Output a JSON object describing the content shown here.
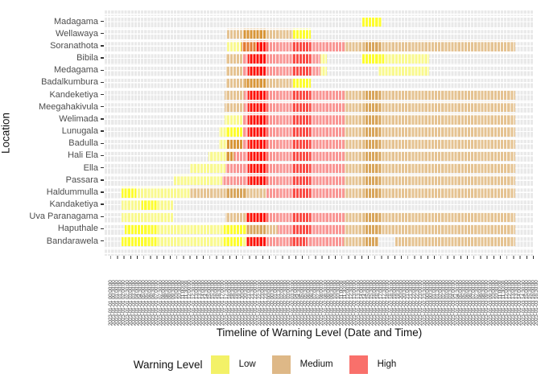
{
  "figure": {
    "x_axis_title": "Timeline of Warning Level (Date and Time)",
    "y_axis_title": "Location"
  },
  "legend": {
    "title": "Warning Level",
    "items": [
      {
        "label": "Low",
        "color": "#f3f167"
      },
      {
        "label": "Medium",
        "color": "#deb887"
      },
      {
        "label": "High",
        "color": "#f9706b"
      }
    ]
  },
  "chart_data": {
    "type": "heatmap",
    "title": "",
    "xlabel": "Timeline of Warning Level (Date and Time)",
    "ylabel": "Location",
    "legend_position": "bottom",
    "grid": true,
    "levels": [
      "Low",
      "Medium",
      "High"
    ],
    "palette": {
      "Y": {
        "level": "Low",
        "shade": "pale",
        "color": "#f9f98f"
      },
      "YB": {
        "level": "Low",
        "shade": "bright",
        "color": "#fdfd2e"
      },
      "T": {
        "level": "Medium",
        "shade": "pale",
        "color": "#e5c392"
      },
      "TD": {
        "level": "Medium",
        "shade": "dark",
        "color": "#d8a55b"
      },
      "O": {
        "level": "Medium",
        "shade": "orange",
        "color": "#d89638"
      },
      "OR": {
        "level": "High",
        "shade": "orange",
        "color": "#e37b31"
      },
      "S": {
        "level": "High",
        "shade": "pale",
        "color": "#f99694"
      },
      "R2": {
        "level": "High",
        "shade": "mid",
        "color": "#fa4b45"
      },
      "R": {
        "level": "High",
        "shade": "bright",
        "color": "#fe1005"
      }
    },
    "x_ticks": {
      "format": "YYYY-MM-DD HH:MM:SS",
      "start": "2023-01-01 00:00:00",
      "step_minutes": 30,
      "count": 130
    },
    "categories_y": [
      "Madagama",
      "Wellawaya",
      "Soranathota",
      "Bibila",
      "Medagama",
      "Badalkumbura",
      "Kandeketiya",
      "Meegahakivula",
      "Welimada",
      "Lunugala",
      "Badulla",
      "Hali Ela",
      "Ella",
      "Passara",
      "Haldummulla",
      "Kandaketiya",
      "Uva Paranagama",
      "Haputhale",
      "Bandarawela"
    ],
    "rows": [
      {
        "location": "Madagama",
        "segments": [
          [
            78,
            84,
            "YB"
          ]
        ]
      },
      {
        "location": "Wellawaya",
        "segments": [
          [
            37,
            42.2,
            "T"
          ],
          [
            42.2,
            49,
            "O"
          ],
          [
            49,
            57,
            "T"
          ],
          [
            57,
            62.5,
            "YB"
          ]
        ]
      },
      {
        "location": "Soranathota",
        "segments": [
          [
            37,
            41.5,
            "Y"
          ],
          [
            41.5,
            46,
            "OR"
          ],
          [
            46,
            49.3,
            "R"
          ],
          [
            49.3,
            57,
            "S"
          ],
          [
            57,
            62.5,
            "R2"
          ],
          [
            62.5,
            72.7,
            "S"
          ],
          [
            72.7,
            78.5,
            "T"
          ],
          [
            78.5,
            83.7,
            "TD"
          ],
          [
            83.7,
            124.5,
            "T"
          ]
        ]
      },
      {
        "location": "Bibila",
        "segments": [
          [
            36.8,
            42,
            "T"
          ],
          [
            42,
            43.4,
            "S"
          ],
          [
            43.4,
            49,
            "R"
          ],
          [
            49,
            57,
            "S"
          ],
          [
            57,
            62.5,
            "R2"
          ],
          [
            62.5,
            65.4,
            "S"
          ],
          [
            65.4,
            67.3,
            "Y"
          ],
          [
            78,
            84.7,
            "YB"
          ],
          [
            84.7,
            98.3,
            "Y"
          ]
        ]
      },
      {
        "location": "Medagama",
        "segments": [
          [
            36.8,
            42,
            "T"
          ],
          [
            42,
            43.4,
            "S"
          ],
          [
            43.4,
            49,
            "R"
          ],
          [
            49,
            57,
            "S"
          ],
          [
            57,
            62.5,
            "R2"
          ],
          [
            62.5,
            65.4,
            "S"
          ],
          [
            65.4,
            67.3,
            "Y"
          ],
          [
            83,
            98.3,
            "Y"
          ]
        ]
      },
      {
        "location": "Badalkumbura",
        "segments": [
          [
            36.8,
            42.4,
            "T"
          ],
          [
            42.4,
            49,
            "O"
          ],
          [
            49,
            57,
            "T"
          ],
          [
            57,
            62.5,
            "YB"
          ]
        ]
      },
      {
        "location": "Kandeketiya",
        "segments": [
          [
            36.3,
            42.2,
            "T"
          ],
          [
            42.2,
            43.4,
            "S"
          ],
          [
            43.4,
            49.3,
            "R"
          ],
          [
            49.3,
            57,
            "S"
          ],
          [
            57,
            62.5,
            "R2"
          ],
          [
            62.5,
            72.7,
            "S"
          ],
          [
            72.7,
            78.5,
            "T"
          ],
          [
            78.5,
            83.7,
            "TD"
          ],
          [
            83.7,
            124.5,
            "T"
          ]
        ]
      },
      {
        "location": "Meegahakivula",
        "segments": [
          [
            36.3,
            42.2,
            "T"
          ],
          [
            42.2,
            43.4,
            "S"
          ],
          [
            43.4,
            49.3,
            "R"
          ],
          [
            49.3,
            57,
            "S"
          ],
          [
            57,
            62.5,
            "R2"
          ],
          [
            62.5,
            72.7,
            "S"
          ],
          [
            72.7,
            78.5,
            "T"
          ],
          [
            78.5,
            83.7,
            "TD"
          ],
          [
            83.7,
            124.5,
            "T"
          ]
        ]
      },
      {
        "location": "Welimada",
        "segments": [
          [
            36.3,
            42,
            "Y"
          ],
          [
            42,
            43.4,
            "S"
          ],
          [
            43.4,
            49.3,
            "R"
          ],
          [
            49.3,
            57,
            "S"
          ],
          [
            57,
            62.5,
            "R2"
          ],
          [
            62.5,
            72.7,
            "S"
          ],
          [
            72.7,
            78.5,
            "T"
          ],
          [
            78.5,
            83.7,
            "TD"
          ],
          [
            83.7,
            124.5,
            "T"
          ]
        ]
      },
      {
        "location": "Lunugala",
        "segments": [
          [
            34.6,
            36.8,
            "Y"
          ],
          [
            36.8,
            42,
            "YB"
          ],
          [
            42,
            43.4,
            "S"
          ],
          [
            43.4,
            49.3,
            "R"
          ],
          [
            49.3,
            57,
            "S"
          ],
          [
            57,
            62.5,
            "R2"
          ],
          [
            62.5,
            72.7,
            "S"
          ],
          [
            72.7,
            78.5,
            "T"
          ],
          [
            78.5,
            83.7,
            "TD"
          ],
          [
            83.7,
            124.5,
            "T"
          ]
        ]
      },
      {
        "location": "Badulla",
        "segments": [
          [
            34.6,
            37.1,
            "Y"
          ],
          [
            37.1,
            41.7,
            "O"
          ],
          [
            41.7,
            43.4,
            "S"
          ],
          [
            43.4,
            49.3,
            "R"
          ],
          [
            49.3,
            57,
            "S"
          ],
          [
            57,
            62.5,
            "R2"
          ],
          [
            62.5,
            72.7,
            "S"
          ],
          [
            72.7,
            78.5,
            "T"
          ],
          [
            78.5,
            83.7,
            "TD"
          ],
          [
            83.7,
            124.5,
            "T"
          ]
        ]
      },
      {
        "location": "Hali Ela",
        "segments": [
          [
            31.5,
            36.8,
            "Y"
          ],
          [
            36.8,
            39.3,
            "O"
          ],
          [
            39.3,
            43.4,
            "S"
          ],
          [
            43.4,
            49.3,
            "R"
          ],
          [
            49.3,
            57,
            "S"
          ],
          [
            57,
            62.5,
            "R2"
          ],
          [
            62.5,
            72.7,
            "S"
          ],
          [
            72.7,
            78.5,
            "T"
          ],
          [
            78.5,
            83.7,
            "TD"
          ],
          [
            83.7,
            124.5,
            "T"
          ]
        ]
      },
      {
        "location": "Ella",
        "segments": [
          [
            25.9,
            36.6,
            "Y"
          ],
          [
            36.6,
            43.4,
            "S"
          ],
          [
            43.4,
            49.3,
            "R"
          ],
          [
            49.3,
            57,
            "S"
          ],
          [
            57,
            62.5,
            "R2"
          ],
          [
            62.5,
            72.7,
            "S"
          ],
          [
            72.7,
            78.5,
            "T"
          ],
          [
            78.5,
            83.7,
            "TD"
          ],
          [
            83.7,
            124.5,
            "T"
          ]
        ]
      },
      {
        "location": "Passara",
        "segments": [
          [
            20.7,
            35.6,
            "Y"
          ],
          [
            35.6,
            43.4,
            "S"
          ],
          [
            43.4,
            49.3,
            "R"
          ],
          [
            49.3,
            57,
            "S"
          ],
          [
            57,
            62.5,
            "R2"
          ],
          [
            62.5,
            72.7,
            "S"
          ],
          [
            72.7,
            78.5,
            "T"
          ],
          [
            78.5,
            83.7,
            "TD"
          ],
          [
            83.7,
            124.5,
            "T"
          ]
        ]
      },
      {
        "location": "Haldummulla",
        "segments": [
          [
            5.1,
            9.5,
            "YB"
          ],
          [
            9.5,
            25.9,
            "Y"
          ],
          [
            25.9,
            36.8,
            "T"
          ],
          [
            36.8,
            43,
            "TD"
          ],
          [
            43,
            48.8,
            "T"
          ],
          [
            48.8,
            57,
            "S"
          ],
          [
            57,
            62.5,
            "R2"
          ],
          [
            62.5,
            72.7,
            "S"
          ],
          [
            72.7,
            78.5,
            "T"
          ],
          [
            78.5,
            83.7,
            "TD"
          ],
          [
            83.7,
            124.5,
            "T"
          ]
        ]
      },
      {
        "location": "Kandaketiya",
        "segments": [
          [
            5.1,
            11.2,
            "Y"
          ],
          [
            11.2,
            16.1,
            "YB"
          ],
          [
            16.1,
            20.7,
            "Y"
          ]
        ]
      },
      {
        "location": "Uva Paranagama",
        "segments": [
          [
            5.1,
            20.7,
            "Y"
          ],
          [
            36.6,
            43,
            "T"
          ],
          [
            43,
            49.3,
            "R"
          ],
          [
            49.3,
            57,
            "S"
          ],
          [
            57,
            62.5,
            "R2"
          ],
          [
            62.5,
            72.7,
            "S"
          ],
          [
            72.7,
            78.5,
            "T"
          ],
          [
            78.5,
            83.7,
            "TD"
          ],
          [
            83.7,
            124.5,
            "T"
          ]
        ]
      },
      {
        "location": "Haputhale",
        "segments": [
          [
            6,
            16.1,
            "YB"
          ],
          [
            16.1,
            36.1,
            "Y"
          ],
          [
            36.1,
            42.9,
            "YB"
          ],
          [
            42.9,
            48.8,
            "TD"
          ],
          [
            48.8,
            52.4,
            "T"
          ],
          [
            52.4,
            57,
            "S"
          ],
          [
            57,
            62.5,
            "R2"
          ],
          [
            62.5,
            72.7,
            "S"
          ],
          [
            72.7,
            78.5,
            "T"
          ],
          [
            78.5,
            83.7,
            "TD"
          ],
          [
            83.7,
            124.5,
            "T"
          ]
        ]
      },
      {
        "location": "Bandarawela",
        "segments": [
          [
            5.1,
            16.1,
            "YB"
          ],
          [
            16.1,
            36.1,
            "Y"
          ],
          [
            36.1,
            41.7,
            "YB"
          ],
          [
            41.7,
            42.9,
            "Y"
          ],
          [
            42.9,
            48.8,
            "R"
          ],
          [
            48.8,
            56.3,
            "S"
          ],
          [
            56.3,
            61.2,
            "R2"
          ],
          [
            61.2,
            72.4,
            "S"
          ],
          [
            72.4,
            78.5,
            "T"
          ],
          [
            78.5,
            82.9,
            "TD"
          ],
          [
            87.8,
            124.5,
            "T"
          ]
        ]
      }
    ]
  }
}
